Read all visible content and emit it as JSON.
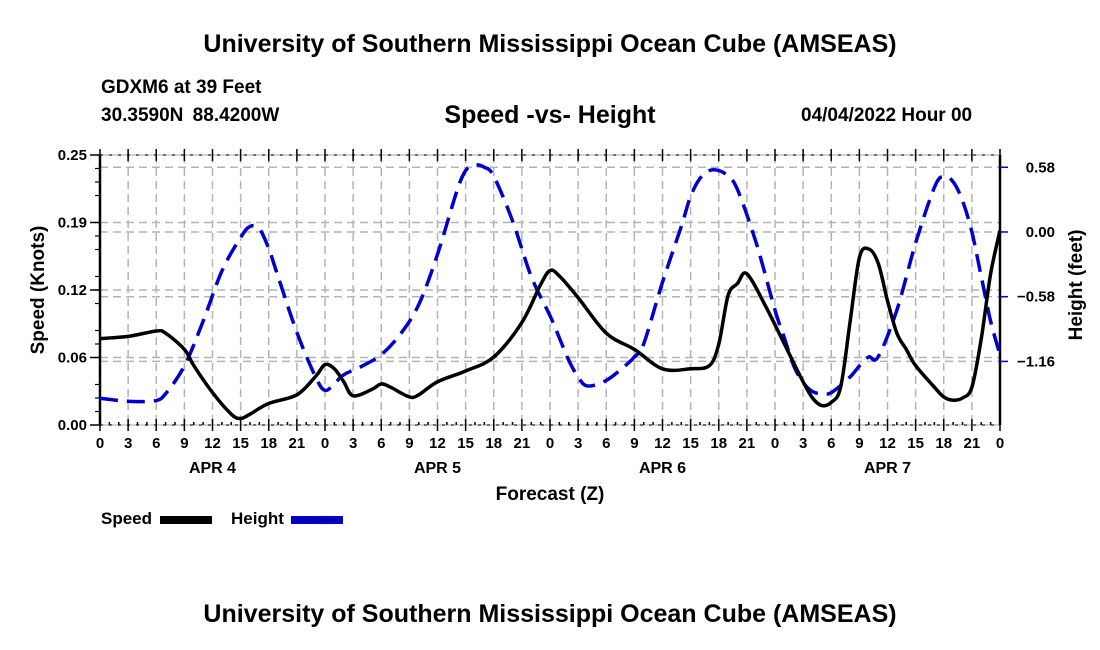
{
  "header": {
    "main_title": "University of Southern Mississippi Ocean Cube (AMSEAS)",
    "station": "GDXM6 at 39 Feet",
    "coordinates": "30.3590N  88.4200W",
    "subtitle": "Speed -vs- Height",
    "datetime": "04/04/2022 Hour 00"
  },
  "footer": {
    "title": "University of Southern Mississippi Ocean Cube (AMSEAS)"
  },
  "legend": {
    "items": [
      {
        "label": "Speed",
        "color": "#000000",
        "style": "solid"
      },
      {
        "label": "Height",
        "color": "#0000cc",
        "style": "dashed"
      }
    ]
  },
  "chart_data": {
    "type": "line",
    "title": "Speed -vs- Height",
    "xlabel": "Forecast (Z)",
    "ylabel": "Speed (Knots)",
    "y2label": "Height (feet)",
    "grid": true,
    "legend_position": "bottom-left",
    "xlim": [
      0,
      96
    ],
    "ylim": [
      0,
      0.25
    ],
    "y2lim": [
      -1.73,
      0.69
    ],
    "x_tick_labels": [
      "0",
      "3",
      "6",
      "9",
      "12",
      "15",
      "18",
      "21",
      "0",
      "3",
      "6",
      "9",
      "12",
      "15",
      "18",
      "21",
      "0",
      "3",
      "6",
      "9",
      "12",
      "15",
      "18",
      "21",
      "0",
      "3",
      "6",
      "9",
      "12",
      "15",
      "18",
      "21",
      "0"
    ],
    "x_ticks_hours": [
      0,
      3,
      6,
      9,
      12,
      15,
      18,
      21,
      24,
      27,
      30,
      33,
      36,
      39,
      42,
      45,
      48,
      51,
      54,
      57,
      60,
      63,
      66,
      69,
      72,
      75,
      78,
      81,
      84,
      87,
      90,
      93,
      96
    ],
    "date_labels": [
      {
        "label": "APR 4",
        "hour": 12
      },
      {
        "label": "APR 5",
        "hour": 36
      },
      {
        "label": "APR 6",
        "hour": 60
      },
      {
        "label": "APR 7",
        "hour": 84
      }
    ],
    "y_tick_labels": [
      "0.00",
      "0.06",
      "0.12",
      "0.19",
      "0.25"
    ],
    "y_ticks": [
      0,
      0.0625,
      0.125,
      0.1875,
      0.25
    ],
    "y2_tick_labels": [
      "-1.16",
      "-0.58",
      "0.00",
      "0.58"
    ],
    "y2_ticks": [
      -1.16,
      -0.58,
      0.0,
      0.58
    ],
    "series": [
      {
        "name": "Speed",
        "axis": "left",
        "color": "#000000",
        "x": [
          0,
          3,
          6,
          7,
          9,
          10,
          12,
          14,
          15,
          16,
          18,
          21,
          23,
          24,
          25,
          26,
          27,
          29,
          30,
          31,
          33,
          34,
          36,
          39,
          42,
          45,
          47,
          48,
          49,
          51,
          54,
          57,
          60,
          63,
          65,
          66,
          67,
          68,
          69,
          71,
          73,
          75,
          76,
          77,
          78,
          79,
          80,
          81,
          82,
          83,
          84,
          85,
          86,
          87,
          89,
          90,
          91,
          92,
          93,
          94,
          95,
          96
        ],
        "values": [
          0.08,
          0.082,
          0.087,
          0.085,
          0.07,
          0.055,
          0.03,
          0.01,
          0.006,
          0.01,
          0.02,
          0.028,
          0.045,
          0.056,
          0.052,
          0.04,
          0.027,
          0.033,
          0.038,
          0.035,
          0.026,
          0.028,
          0.04,
          0.05,
          0.063,
          0.095,
          0.13,
          0.143,
          0.138,
          0.118,
          0.085,
          0.07,
          0.052,
          0.052,
          0.055,
          0.075,
          0.12,
          0.131,
          0.14,
          0.11,
          0.075,
          0.04,
          0.025,
          0.018,
          0.021,
          0.035,
          0.095,
          0.155,
          0.163,
          0.15,
          0.115,
          0.085,
          0.07,
          0.055,
          0.035,
          0.026,
          0.023,
          0.025,
          0.035,
          0.08,
          0.14,
          0.18
        ]
      },
      {
        "name": "Height",
        "axis": "right",
        "color": "#0000cc",
        "x": [
          0,
          2,
          4,
          6,
          7,
          9,
          11,
          13,
          15,
          16,
          17,
          18,
          19,
          21,
          23,
          24,
          25,
          26,
          28,
          30,
          32,
          34,
          36,
          38,
          39,
          40,
          41,
          42,
          44,
          46,
          48,
          49,
          50,
          51,
          52,
          54,
          56,
          57,
          58,
          60,
          62,
          63,
          64,
          65,
          66,
          67,
          68,
          70,
          72,
          73,
          74,
          75,
          76,
          77,
          78,
          80,
          81,
          82,
          83,
          85,
          87,
          89,
          90,
          91,
          92,
          93,
          94,
          95,
          96
        ],
        "values": [
          -1.49,
          -1.51,
          -1.52,
          -1.51,
          -1.45,
          -1.2,
          -0.8,
          -0.35,
          -0.05,
          0.05,
          0.03,
          -0.15,
          -0.4,
          -0.9,
          -1.3,
          -1.42,
          -1.36,
          -1.28,
          -1.2,
          -1.1,
          -0.92,
          -0.65,
          -0.2,
          0.35,
          0.55,
          0.6,
          0.58,
          0.5,
          0.1,
          -0.4,
          -0.75,
          -0.95,
          -1.15,
          -1.3,
          -1.38,
          -1.33,
          -1.2,
          -1.12,
          -1.0,
          -0.45,
          0.05,
          0.32,
          0.48,
          0.55,
          0.55,
          0.5,
          0.38,
          -0.1,
          -0.7,
          -0.95,
          -1.2,
          -1.35,
          -1.43,
          -1.45,
          -1.44,
          -1.3,
          -1.2,
          -1.12,
          -1.12,
          -0.7,
          -0.1,
          0.4,
          0.5,
          0.45,
          0.28,
          0.0,
          -0.4,
          -0.8,
          -1.1
        ]
      }
    ]
  }
}
